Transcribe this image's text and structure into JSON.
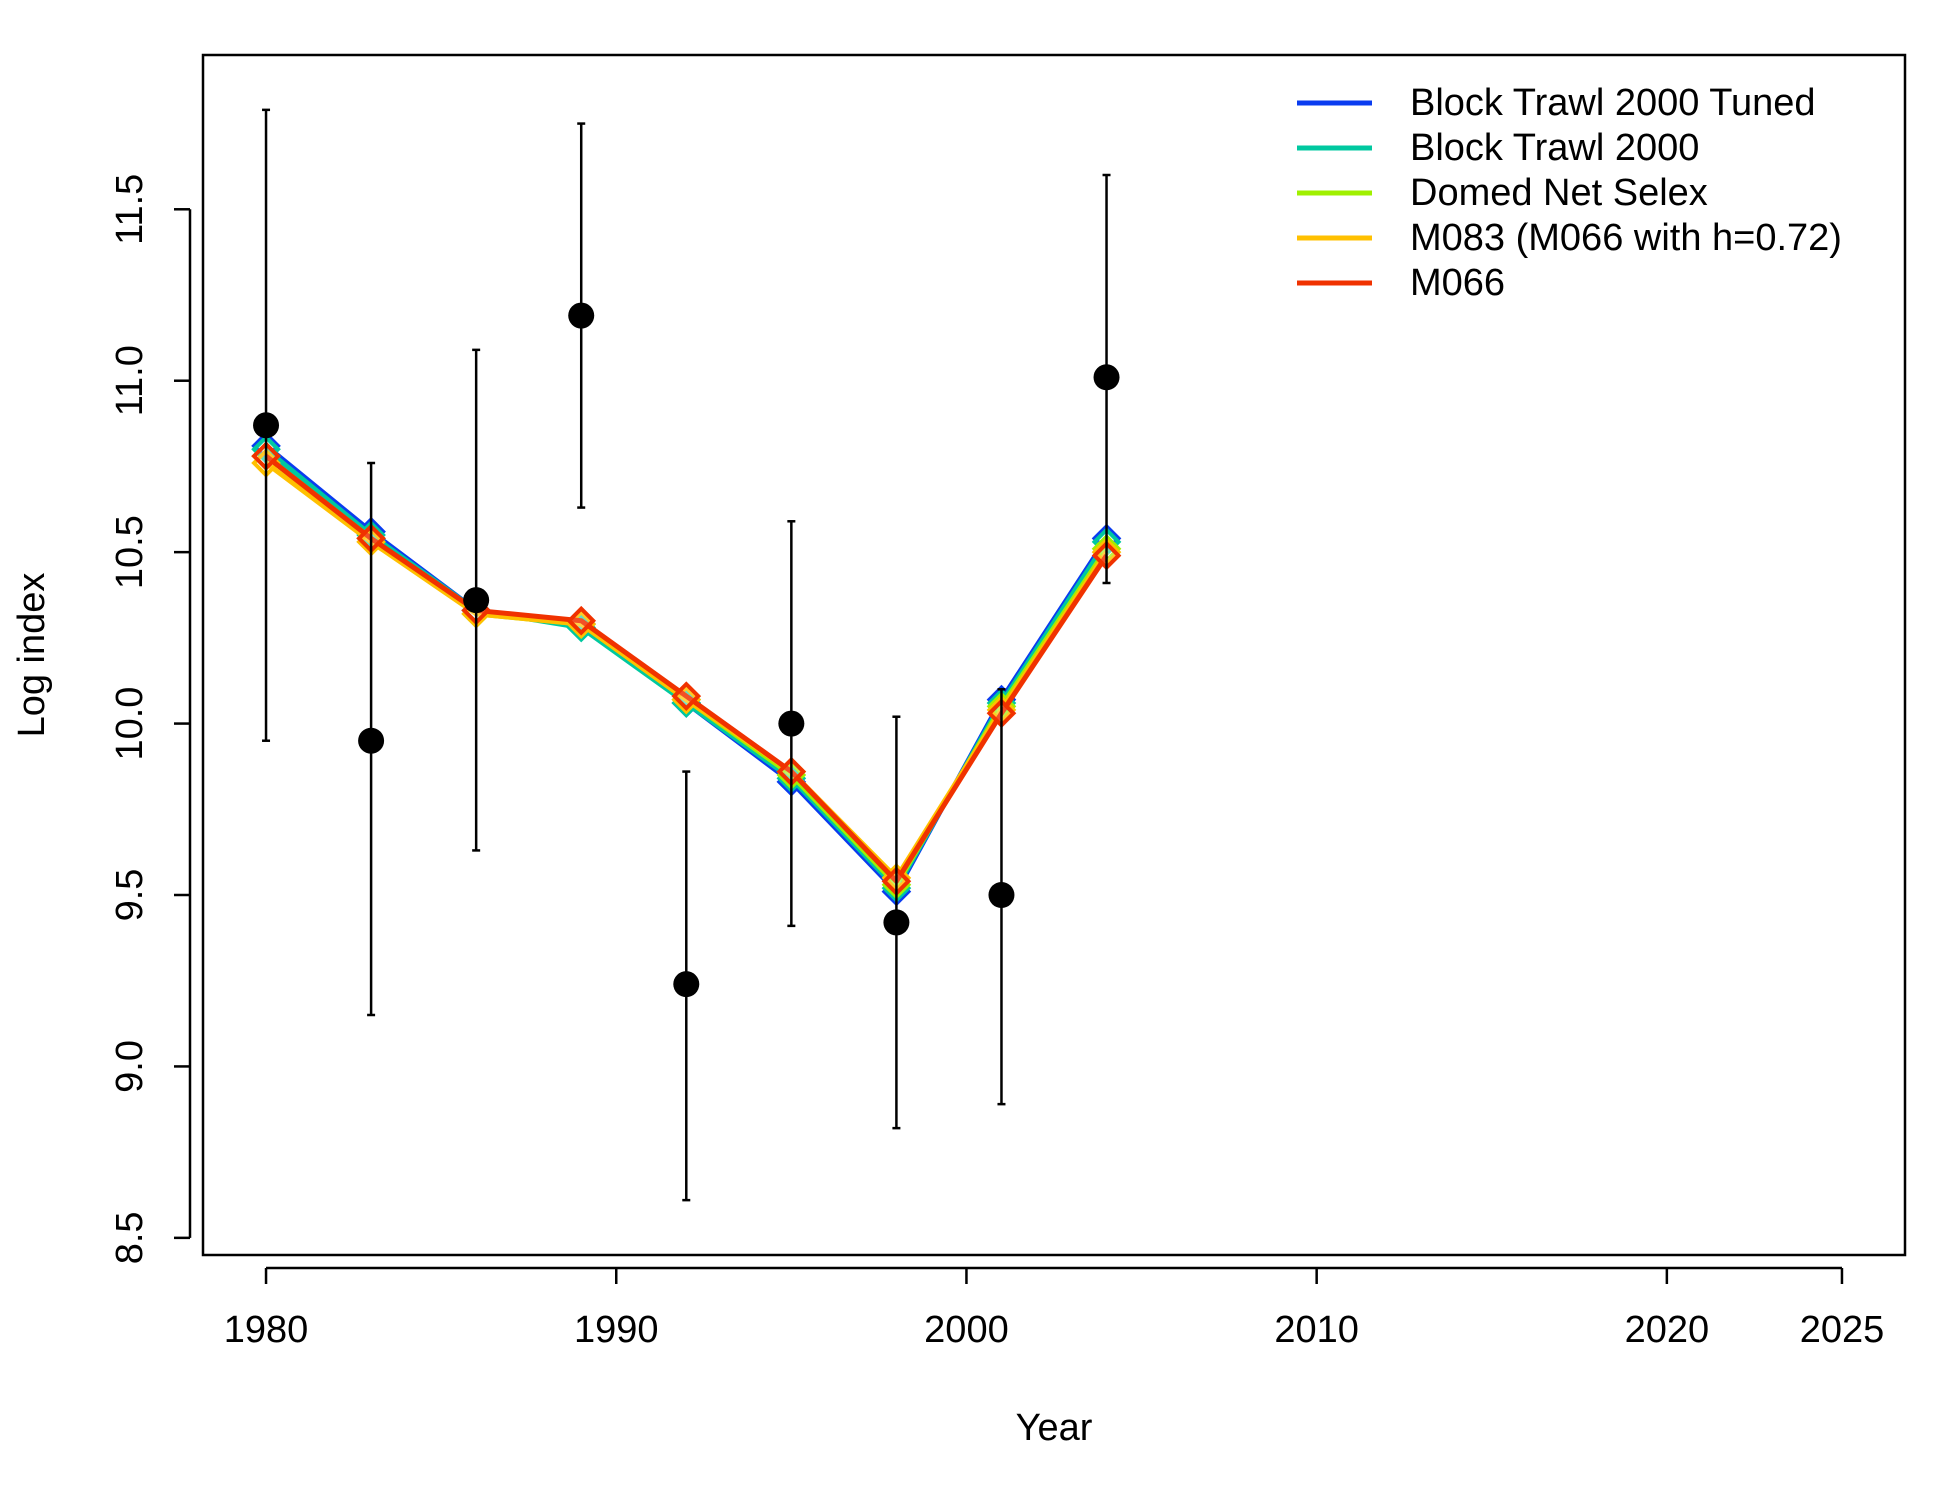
{
  "chart_data": {
    "type": "line",
    "title": "",
    "xlabel": "Year",
    "ylabel": "Log index",
    "xlim": [
      1978.2,
      2026.8
    ],
    "ylim": [
      8.45,
      11.95
    ],
    "x_ticks": [
      1980,
      1990,
      2000,
      2010,
      2020,
      2025
    ],
    "y_ticks": [
      8.5,
      9.0,
      9.5,
      10.0,
      10.5,
      11.0,
      11.5
    ],
    "legend_position": "top-right",
    "grid": false,
    "observed": {
      "x": [
        1980,
        1983,
        1986,
        1989,
        1992,
        1995,
        1998,
        2001,
        2004
      ],
      "y": [
        10.87,
        9.95,
        10.36,
        11.19,
        9.24,
        10.0,
        9.42,
        9.5,
        11.01
      ],
      "lower": [
        9.95,
        9.15,
        9.63,
        10.63,
        8.61,
        9.41,
        8.82,
        8.89,
        10.41
      ],
      "upper": [
        11.79,
        10.76,
        11.09,
        11.75,
        9.86,
        10.59,
        10.02,
        10.1,
        11.6
      ]
    },
    "x": [
      1980,
      1983,
      1986,
      1989,
      1992,
      1995,
      1998,
      2001,
      2004
    ],
    "series": [
      {
        "name": "Block Trawl 2000 Tuned",
        "color": "#0a3cf0",
        "values": [
          10.81,
          10.56,
          10.33,
          10.29,
          10.06,
          9.83,
          9.51,
          10.07,
          10.54
        ]
      },
      {
        "name": "Block Trawl 2000",
        "color": "#00c8a0",
        "values": [
          10.8,
          10.55,
          10.33,
          10.28,
          10.06,
          9.84,
          9.52,
          10.06,
          10.53
        ]
      },
      {
        "name": "Domed Net Selex",
        "color": "#a0f000",
        "values": [
          10.78,
          10.54,
          10.32,
          10.29,
          10.07,
          9.85,
          9.53,
          10.05,
          10.51
        ]
      },
      {
        "name": "M083 (M066 with h=0.72)",
        "color": "#ffc000",
        "values": [
          10.76,
          10.53,
          10.32,
          10.29,
          10.07,
          9.86,
          9.55,
          10.04,
          10.5
        ]
      },
      {
        "name": "M066",
        "color": "#f03200",
        "values": [
          10.78,
          10.54,
          10.33,
          10.3,
          10.08,
          9.86,
          9.54,
          10.03,
          10.49
        ]
      }
    ]
  }
}
